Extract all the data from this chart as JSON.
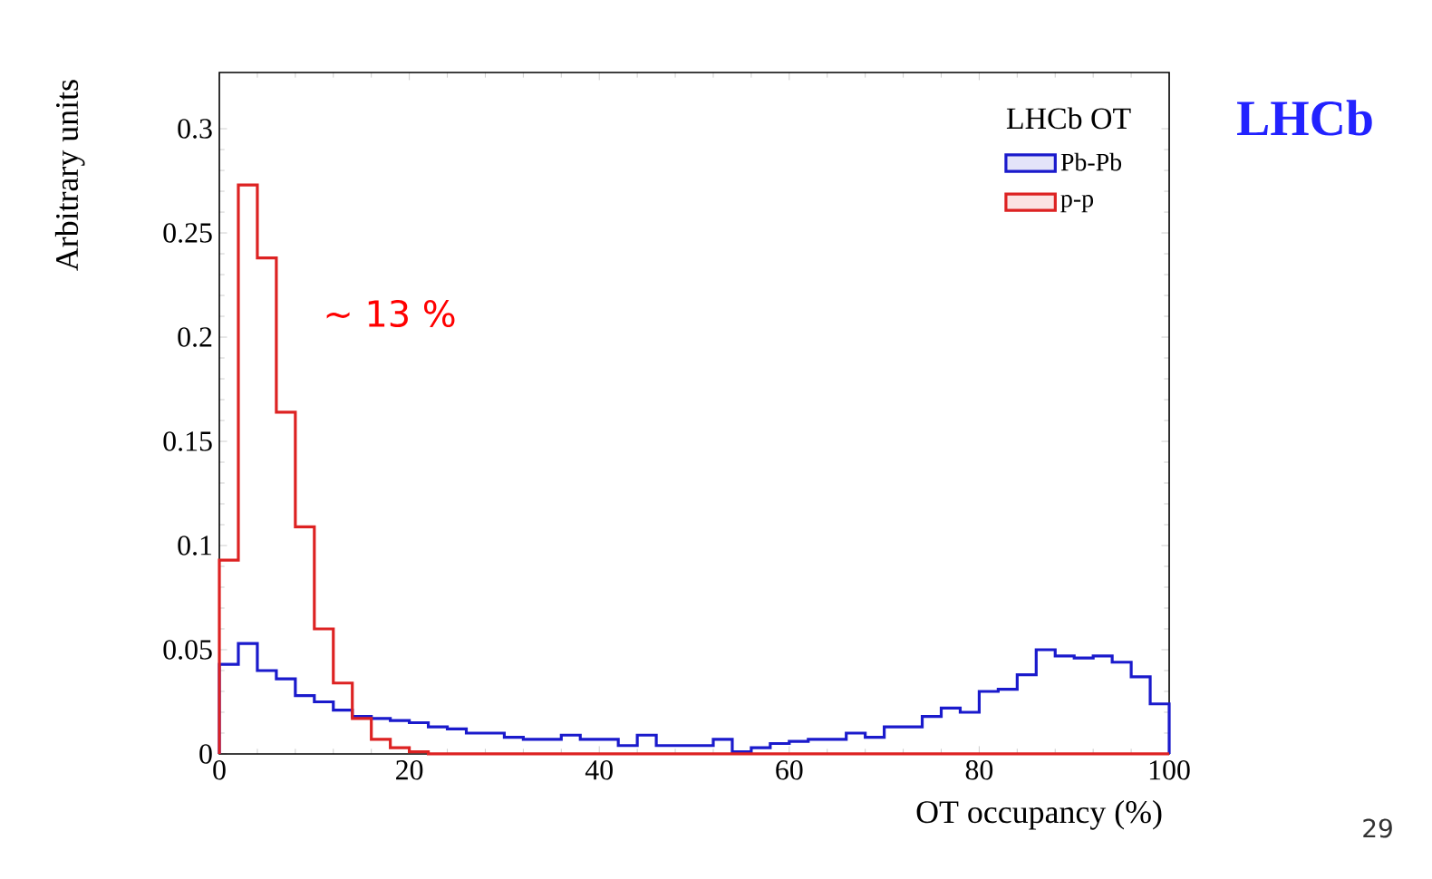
{
  "chart_data": {
    "type": "histogram",
    "xlabel": "OT occupancy (%)",
    "ylabel": "Arbitrary units",
    "legend_title": "LHCb OT",
    "bins": [
      0,
      2,
      4,
      6,
      8,
      10,
      12,
      14,
      16,
      18,
      20,
      22,
      24,
      26,
      28,
      30,
      32,
      34,
      36,
      38,
      40,
      42,
      44,
      46,
      48,
      50,
      52,
      54,
      56,
      58,
      60,
      62,
      64,
      66,
      68,
      70,
      72,
      74,
      76,
      78,
      80,
      82,
      84,
      86,
      88,
      90,
      92,
      94,
      96,
      98,
      100
    ],
    "series": [
      {
        "name": "Pb-Pb",
        "color": "#1a1acc",
        "values": [
          0.043,
          0.053,
          0.04,
          0.036,
          0.028,
          0.025,
          0.021,
          0.018,
          0.017,
          0.016,
          0.015,
          0.013,
          0.012,
          0.01,
          0.01,
          0.008,
          0.007,
          0.007,
          0.009,
          0.007,
          0.007,
          0.004,
          0.009,
          0.004,
          0.004,
          0.004,
          0.007,
          0.001,
          0.003,
          0.005,
          0.006,
          0.007,
          0.007,
          0.01,
          0.008,
          0.013,
          0.013,
          0.018,
          0.022,
          0.02,
          0.03,
          0.031,
          0.038,
          0.05,
          0.047,
          0.046,
          0.047,
          0.044,
          0.037,
          0.024
        ]
      },
      {
        "name": "p-p",
        "color": "#dd2222",
        "values": [
          0.093,
          0.273,
          0.238,
          0.164,
          0.109,
          0.06,
          0.034,
          0.017,
          0.007,
          0.003,
          0.001,
          0,
          0,
          0,
          0,
          0,
          0,
          0,
          0,
          0,
          0,
          0,
          0,
          0,
          0,
          0,
          0,
          0,
          0,
          0,
          0,
          0,
          0,
          0,
          0,
          0,
          0,
          0,
          0,
          0,
          0,
          0,
          0,
          0,
          0,
          0,
          0,
          0,
          0,
          0
        ]
      }
    ],
    "xlim": [
      0,
      100
    ],
    "ylim": [
      0,
      0.327
    ],
    "xticks": [
      0,
      20,
      40,
      60,
      80,
      100
    ],
    "yticks": [
      0,
      0.05,
      0.1,
      0.15,
      0.2,
      0.25,
      0.3
    ],
    "legend": "top right",
    "grid": false,
    "annotations": [
      "~ 13 %",
      "LHCb",
      "29"
    ]
  }
}
